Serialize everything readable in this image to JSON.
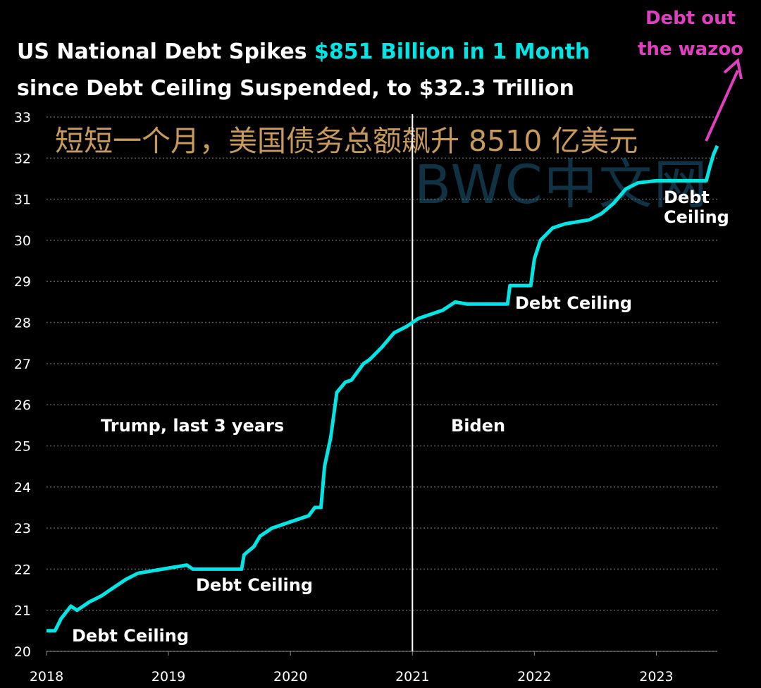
{
  "chart_data": {
    "type": "line",
    "title_line1_prefix": "US National Debt Spikes ",
    "title_line1_highlight": "$851 Billion in 1 Month",
    "title_line2": "since Debt Ceiling Suspended, to $32.3 Trillion",
    "overlay_text_cn": "短短一个月，美国债务总额飙升 8510 亿美元",
    "watermark": "BWC中文网",
    "xlabel": "",
    "ylabel": "",
    "xlim": [
      2018.0,
      2023.5
    ],
    "ylim": [
      20,
      33
    ],
    "y_ticks": [
      "20",
      "21",
      "22",
      "23",
      "24",
      "25",
      "26",
      "27",
      "28",
      "29",
      "30",
      "31",
      "32",
      "33"
    ],
    "x_ticks": [
      "2018",
      "2019",
      "2020",
      "2021",
      "2022",
      "2023"
    ],
    "grid": "horizontal dotted",
    "divider_x": 2021.0,
    "colors": {
      "line": "#00e5e5",
      "highlight": "#00e5e5",
      "pink": "#e040c0",
      "cn_text": "#c79a5c"
    },
    "annotations": [
      {
        "text": "Debt Ceiling",
        "near_x": 2018.2,
        "near_y": 20.5
      },
      {
        "text": "Debt Ceiling",
        "near_x": 2019.6,
        "near_y": 22.0
      },
      {
        "text": "Debt Ceiling",
        "near_x": 2021.9,
        "near_y": 28.5
      },
      {
        "text": "Debt Ceiling",
        "near_x": 2023.3,
        "near_y": 31.45
      },
      {
        "text": "Trump, last 3 years"
      },
      {
        "text": "Biden"
      }
    ],
    "callout": {
      "line1": "Debt out",
      "line2": "the wazoo"
    },
    "series": [
      {
        "x": [
          2018.0,
          2018.07,
          2018.12,
          2018.2,
          2018.25,
          2018.3,
          2018.35,
          2018.45,
          2018.55,
          2018.65,
          2018.75,
          2018.85,
          2018.95,
          2019.05,
          2019.15,
          2019.2,
          2019.6,
          2019.62,
          2019.7,
          2019.75,
          2019.85,
          2019.95,
          2020.05,
          2020.15,
          2020.2,
          2020.25,
          2020.28,
          2020.33,
          2020.38,
          2020.45,
          2020.5,
          2020.55,
          2020.6,
          2020.65,
          2020.75,
          2020.85,
          2020.95,
          2021.05,
          2021.15,
          2021.25,
          2021.35,
          2021.45,
          2021.55,
          2021.78,
          2021.8,
          2021.95,
          2021.97,
          2022.0,
          2022.05,
          2022.15,
          2022.25,
          2022.35,
          2022.45,
          2022.55,
          2022.65,
          2022.75,
          2022.85,
          2023.0,
          2023.02,
          2023.41,
          2023.44,
          2023.47,
          2023.5
        ],
        "values": [
          20.5,
          20.5,
          20.8,
          21.1,
          21.0,
          21.1,
          21.2,
          21.35,
          21.55,
          21.75,
          21.9,
          21.95,
          22.0,
          22.05,
          22.1,
          22.0,
          22.0,
          22.35,
          22.55,
          22.8,
          23.0,
          23.1,
          23.2,
          23.3,
          23.5,
          23.5,
          24.5,
          25.2,
          26.3,
          26.55,
          26.6,
          26.8,
          27.0,
          27.1,
          27.4,
          27.75,
          27.9,
          28.1,
          28.2,
          28.3,
          28.5,
          28.45,
          28.45,
          28.45,
          28.9,
          28.9,
          28.9,
          29.55,
          30.0,
          30.3,
          30.4,
          30.45,
          30.5,
          30.65,
          30.9,
          31.25,
          31.4,
          31.45,
          31.45,
          31.45,
          31.8,
          32.1,
          32.3
        ]
      }
    ]
  }
}
